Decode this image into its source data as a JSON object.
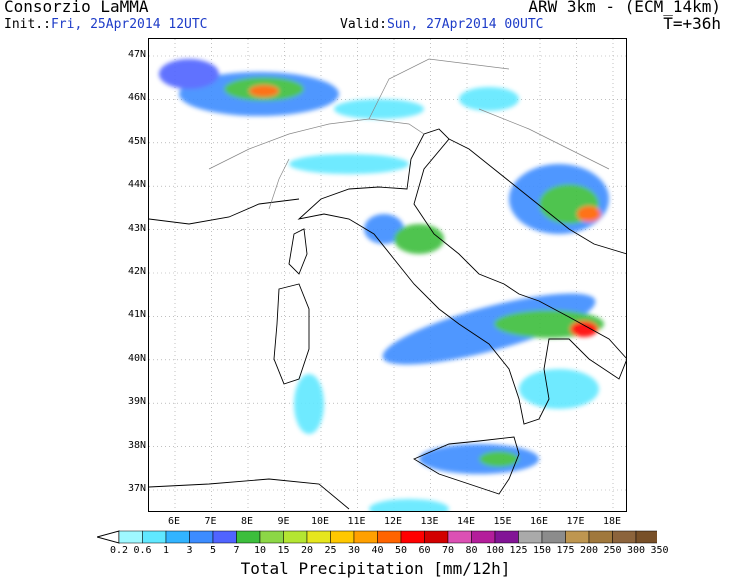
{
  "header": {
    "title_left": "Consorzio LaMMA",
    "title_right": "ARW 3km - (ECM_14km)",
    "init_label": "Init.:",
    "init_value": "Fri, 25Apr2014 12UTC",
    "valid_label": "Valid:",
    "valid_value": "Sun, 27Apr2014 00UTC",
    "lead_time": "T=+36h"
  },
  "map": {
    "lat_labels": [
      "47N",
      "46N",
      "45N",
      "44N",
      "43N",
      "42N",
      "41N",
      "40N",
      "39N",
      "38N",
      "37N"
    ],
    "lon_labels": [
      "6E",
      "7E",
      "8E",
      "9E",
      "10E",
      "11E",
      "12E",
      "13E",
      "14E",
      "15E",
      "16E",
      "17E",
      "18E"
    ],
    "land_color": "#ffffff",
    "border_color": "#888888",
    "coast_color": "#000000",
    "grid": "dotted"
  },
  "colorbar": {
    "title": "Total Precipitation [mm/12h]",
    "tick_labels": [
      "0.2",
      "0.6",
      "1",
      "3",
      "5",
      "7",
      "10",
      "15",
      "20",
      "25",
      "30",
      "40",
      "50",
      "60",
      "70",
      "80",
      "100",
      "125",
      "150",
      "175",
      "200",
      "250",
      "300",
      "350"
    ],
    "colors": [
      "#9ff8ff",
      "#60e8ff",
      "#32b4ff",
      "#3c8cff",
      "#5064ff",
      "#3cbe3c",
      "#8cd746",
      "#b4e632",
      "#e6e61e",
      "#ffc800",
      "#ffa000",
      "#ff6400",
      "#ff0000",
      "#d20000",
      "#dc50b4",
      "#b41e9b",
      "#821496",
      "#aaaaaa",
      "#8c8c8c",
      "#be9650",
      "#a0783c",
      "#8c643c",
      "#785028"
    ],
    "arrow_low_color": "#ffffff",
    "arrow_high_color": "#5a3c1e"
  }
}
